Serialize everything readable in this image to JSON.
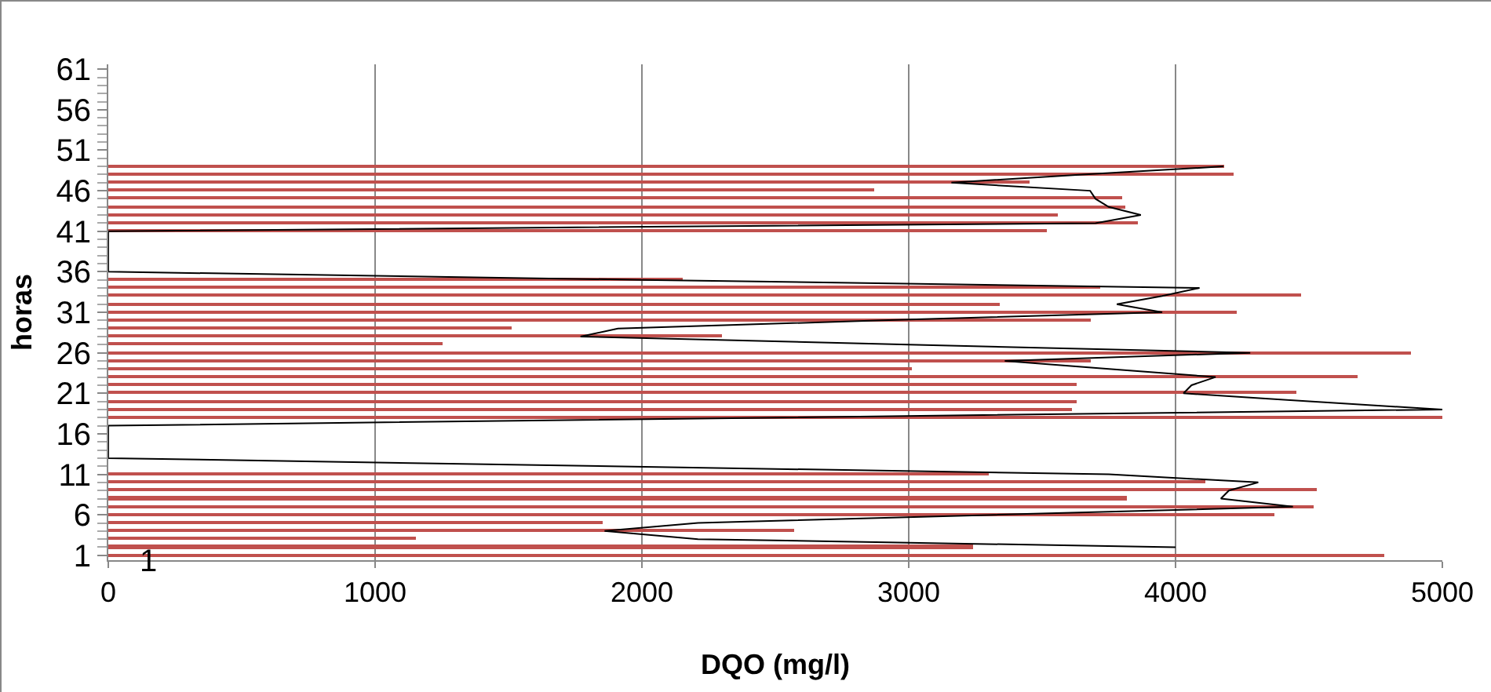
{
  "chart_data": {
    "type": "bar",
    "orientation": "horizontal",
    "xlabel": "DQO (mg/l)",
    "ylabel": "horas",
    "categories": [
      "61",
      null,
      null,
      null,
      null,
      "56",
      null,
      null,
      null,
      null,
      "51",
      null,
      null,
      null,
      null,
      "46",
      null,
      null,
      null,
      null,
      "41",
      null,
      null,
      null,
      null,
      "36",
      null,
      null,
      null,
      null,
      "31",
      null,
      null,
      null,
      null,
      "26",
      null,
      null,
      null,
      null,
      "21",
      null,
      null,
      null,
      null,
      "16",
      null,
      null,
      null,
      null,
      "11",
      null,
      null,
      null,
      null,
      "6",
      null,
      null,
      null,
      null,
      "1"
    ],
    "series": [
      {
        "type": "bar",
        "color": "#c0504d",
        "values": [
          null,
          null,
          null,
          null,
          null,
          null,
          null,
          null,
          null,
          null,
          null,
          null,
          4180,
          4220,
          3450,
          2870,
          3800,
          3810,
          3560,
          3860,
          3520,
          null,
          null,
          null,
          null,
          null,
          2150,
          3720,
          4470,
          3340,
          4230,
          3680,
          1510,
          2300,
          1250,
          4880,
          3680,
          3010,
          4680,
          3630,
          4450,
          3630,
          3610,
          5000,
          null,
          null,
          null,
          null,
          null,
          null,
          3300,
          4110,
          4530,
          3820,
          4520,
          4370,
          1850,
          2570,
          1150,
          3240,
          4780
        ]
      },
      {
        "type": "line",
        "color": "#000000",
        "values": [
          null,
          null,
          null,
          null,
          null,
          null,
          null,
          null,
          null,
          null,
          null,
          null,
          4180,
          3650,
          3160,
          3680,
          3700,
          3750,
          3870,
          3700,
          0,
          0,
          0,
          0,
          0,
          0,
          2000,
          4090,
          3950,
          3780,
          3950,
          2900,
          1910,
          1770,
          3000,
          4280,
          3360,
          3750,
          4150,
          4060,
          4030,
          4500,
          5000,
          null,
          0,
          0,
          0,
          0,
          0,
          null,
          3750,
          4310,
          4200,
          4170,
          4440,
          3320,
          2210,
          1860,
          2210,
          4000,
          null
        ]
      }
    ],
    "xlim": [
      0,
      5000
    ],
    "xticks": [
      0,
      1000,
      2000,
      3000,
      4000,
      5000
    ],
    "grid": "x",
    "annotations": [
      {
        "text": "1",
        "x": 107,
        "y": "1"
      }
    ]
  }
}
